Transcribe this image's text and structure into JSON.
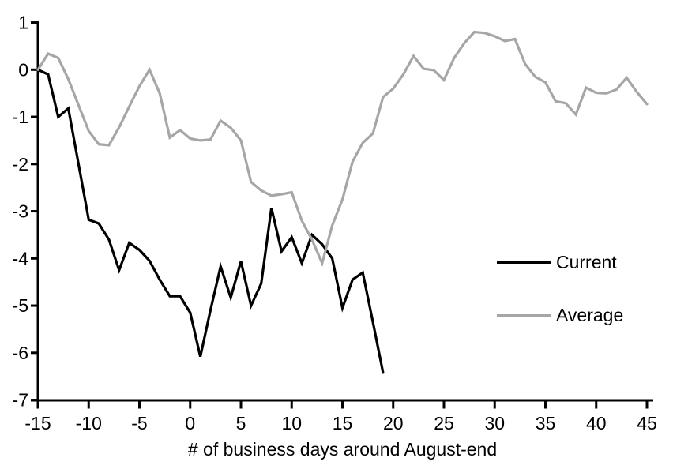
{
  "chart_data": {
    "type": "line",
    "title": "",
    "xlabel": "# of business days around August-end",
    "ylabel": "",
    "xlim": [
      -15,
      45
    ],
    "ylim": [
      -7,
      1
    ],
    "x_ticks": [
      -15,
      -10,
      -5,
      0,
      5,
      10,
      15,
      20,
      25,
      30,
      35,
      40,
      45
    ],
    "y_ticks": [
      1,
      0,
      -1,
      -2,
      -3,
      -4,
      -5,
      -6,
      -7
    ],
    "grid": false,
    "legend_position": "right-middle",
    "axis_color": "#000000",
    "series": [
      {
        "name": "Current",
        "color": "#000000",
        "x": [
          -15,
          -14,
          -13,
          -12,
          -11,
          -10,
          -9,
          -8,
          -7,
          -6,
          -5,
          -4,
          -3,
          -2,
          -1,
          0,
          1,
          2,
          3,
          4,
          5,
          6,
          7,
          8,
          9,
          10,
          11,
          12,
          13,
          14,
          15,
          16,
          17,
          18,
          19
        ],
        "values": [
          0,
          -0.1,
          -1.0,
          -0.82,
          -2.0,
          -3.18,
          -3.26,
          -3.6,
          -4.25,
          -3.67,
          -3.82,
          -4.05,
          -4.45,
          -4.8,
          -4.8,
          -5.15,
          -6.08,
          -5.1,
          -4.17,
          -4.83,
          -4.06,
          -5.0,
          -4.53,
          -2.93,
          -3.85,
          -3.55,
          -4.1,
          -3.5,
          -3.7,
          -4.0,
          -5.05,
          -4.45,
          -4.3,
          -5.35,
          -6.42
        ]
      },
      {
        "name": "Average",
        "color": "#a6a6a6",
        "x": [
          -15,
          -14,
          -13,
          -12,
          -11,
          -10,
          -9,
          -8,
          -7,
          -6,
          -5,
          -4,
          -3,
          -2,
          -1,
          0,
          1,
          2,
          3,
          4,
          5,
          6,
          7,
          8,
          9,
          10,
          11,
          12,
          13,
          14,
          15,
          16,
          17,
          18,
          19,
          20,
          21,
          22,
          23,
          24,
          25,
          26,
          27,
          28,
          29,
          30,
          31,
          32,
          33,
          34,
          35,
          36,
          37,
          38,
          39,
          40,
          41,
          42,
          43,
          44,
          45
        ],
        "values": [
          0,
          0.34,
          0.25,
          -0.2,
          -0.75,
          -1.3,
          -1.58,
          -1.6,
          -1.22,
          -0.78,
          -0.35,
          0.0,
          -0.5,
          -1.44,
          -1.28,
          -1.46,
          -1.5,
          -1.48,
          -1.08,
          -1.23,
          -1.5,
          -2.38,
          -2.56,
          -2.67,
          -2.64,
          -2.6,
          -3.2,
          -3.6,
          -4.1,
          -3.3,
          -2.75,
          -1.95,
          -1.55,
          -1.35,
          -0.58,
          -0.4,
          -0.1,
          0.29,
          0.02,
          -0.01,
          -0.22,
          0.25,
          0.56,
          0.8,
          0.78,
          0.71,
          0.61,
          0.65,
          0.12,
          -0.15,
          -0.27,
          -0.67,
          -0.71,
          -0.95,
          -0.38,
          -0.49,
          -0.5,
          -0.42,
          -0.17,
          -0.47,
          -0.73
        ]
      }
    ]
  },
  "legend": {
    "items": [
      {
        "label": "Current",
        "color": "#000000"
      },
      {
        "label": "Average",
        "color": "#a6a6a6"
      }
    ]
  }
}
